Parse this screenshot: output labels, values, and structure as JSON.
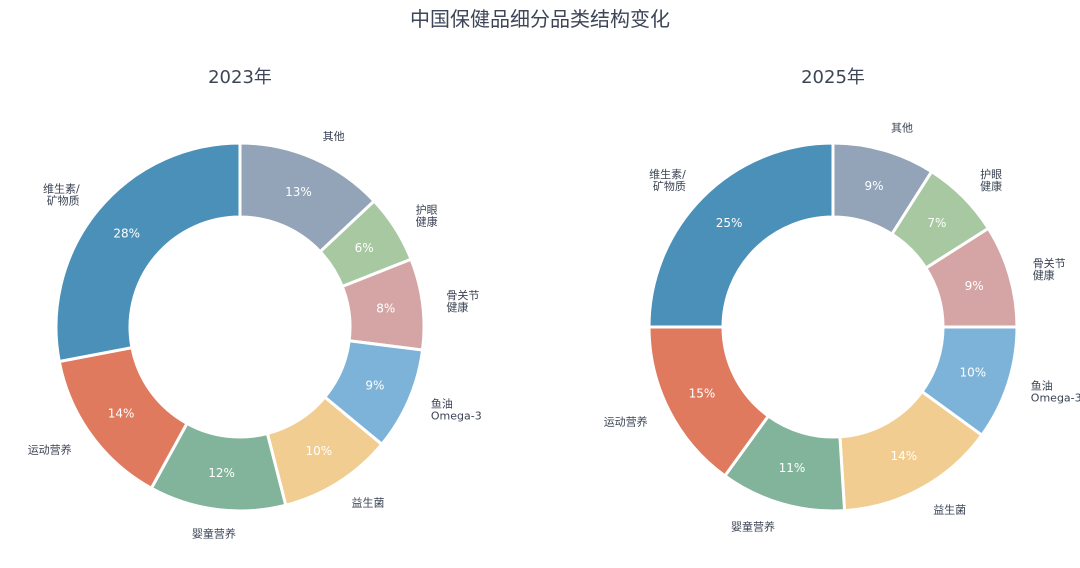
{
  "title": "中国保健品细分品类结构变化",
  "chart_data": [
    {
      "type": "pie",
      "title": "2023年",
      "donut": true,
      "categories": [
        [
          "其他"
        ],
        [
          "护眼",
          "健康"
        ],
        [
          "骨关节",
          "健康"
        ],
        [
          "鱼油",
          "Omega-3"
        ],
        [
          "益生菌"
        ],
        [
          "婴童营养"
        ],
        [
          "运动营养"
        ],
        [
          "维生素/",
          "矿物质"
        ]
      ],
      "values": [
        13,
        6,
        8,
        9,
        10,
        12,
        14,
        28
      ],
      "labels": [
        "13%",
        "6%",
        "8%",
        "9%",
        "10%",
        "12%",
        "14%",
        "28%"
      ],
      "colors": [
        "#93a3b8",
        "#a8c8a2",
        "#d5a5a6",
        "#7db3d8",
        "#f2cd92",
        "#82b39b",
        "#e07a5f",
        "#4a90b8"
      ]
    },
    {
      "type": "pie",
      "title": "2025年",
      "donut": true,
      "categories": [
        [
          "其他"
        ],
        [
          "护眼",
          "健康"
        ],
        [
          "骨关节",
          "健康"
        ],
        [
          "鱼油",
          "Omega-3"
        ],
        [
          "益生菌"
        ],
        [
          "婴童营养"
        ],
        [
          "运动营养"
        ],
        [
          "维生素/",
          "矿物质"
        ]
      ],
      "values": [
        9,
        7,
        9,
        10,
        14,
        11,
        15,
        25
      ],
      "labels": [
        "9%",
        "7%",
        "9%",
        "10%",
        "14%",
        "11%",
        "15%",
        "25%"
      ],
      "colors": [
        "#93a3b8",
        "#a8c8a2",
        "#d5a5a6",
        "#7db3d8",
        "#f2cd92",
        "#82b39b",
        "#e07a5f",
        "#4a90b8"
      ]
    }
  ]
}
